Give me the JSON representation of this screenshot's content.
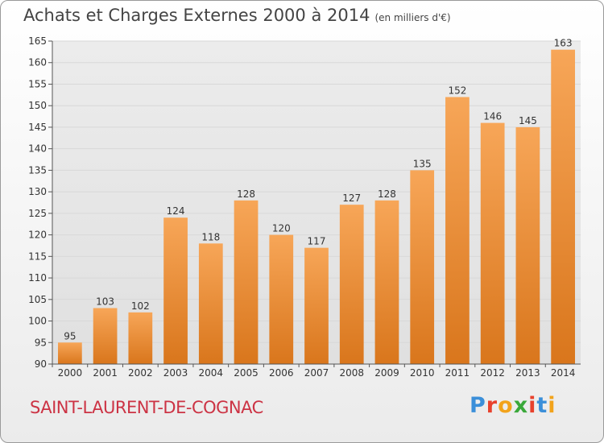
{
  "header": {
    "title": "Achats et Charges Externes 2000 à 2014",
    "unit": "(en milliers d'€)"
  },
  "footer": {
    "town": "SAINT-LAURENT-DE-COGNAC",
    "brand": "Proxiti",
    "brand_colors": [
      "#3b8fd9",
      "#e8412c",
      "#f2a31b",
      "#3aa83a",
      "#e8412c",
      "#3b8fd9",
      "#f2a31b"
    ]
  },
  "chart_data": {
    "type": "bar",
    "title": "Achats et Charges Externes 2000 à 2014",
    "subtitle": "(en milliers d'€)",
    "xlabel": "",
    "ylabel": "",
    "categories": [
      "2000",
      "2001",
      "2002",
      "2003",
      "2004",
      "2005",
      "2006",
      "2007",
      "2008",
      "2009",
      "2010",
      "2011",
      "2012",
      "2013",
      "2014"
    ],
    "values": [
      95,
      103,
      102,
      124,
      118,
      128,
      120,
      117,
      127,
      128,
      135,
      152,
      146,
      145,
      163
    ],
    "data_labels": [
      "95",
      "103",
      "102",
      "124",
      "118",
      "128",
      "120",
      "117",
      "127",
      "128",
      "135",
      "152",
      "146",
      "145",
      "163"
    ],
    "ylim": [
      90,
      165
    ],
    "yticks": [
      90,
      95,
      100,
      105,
      110,
      115,
      120,
      125,
      130,
      135,
      140,
      145,
      150,
      155,
      160,
      165
    ],
    "grid": true,
    "legend": "none",
    "bar_color_top": "#f7a658",
    "bar_color_bottom": "#d9761c",
    "grid_color": "#d8d8d8"
  }
}
